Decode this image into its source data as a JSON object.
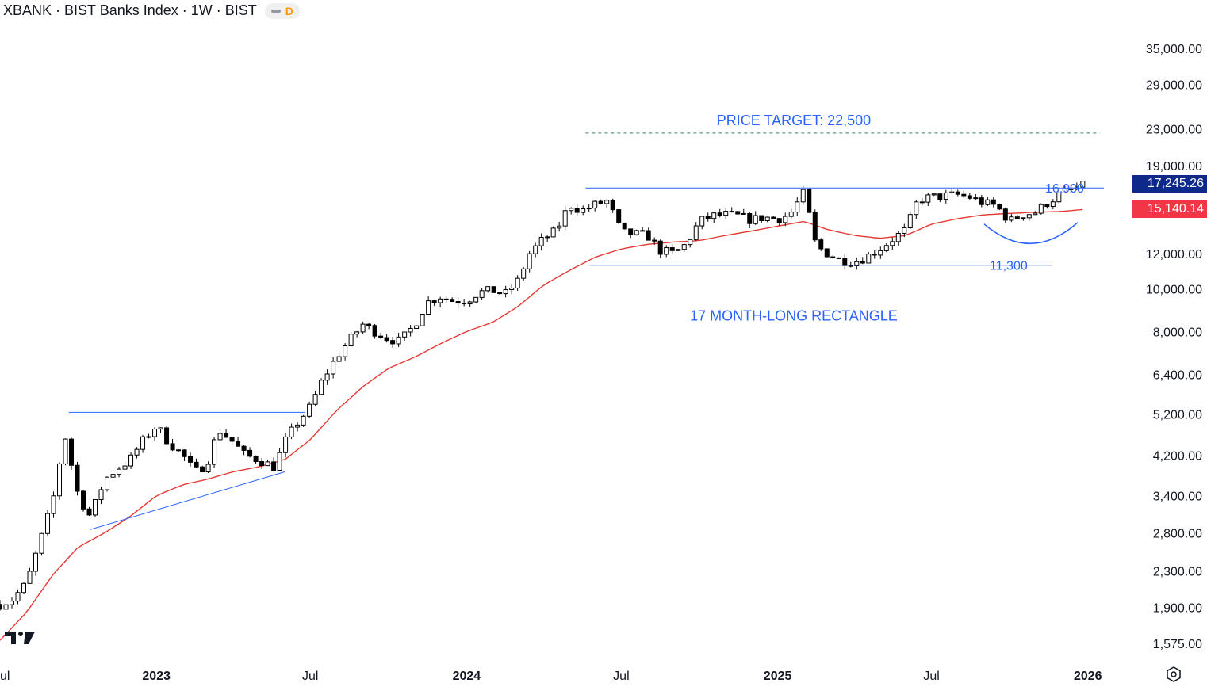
{
  "header": {
    "title": "XBANK · BIST Banks Index · 1W · BIST",
    "badge": "D"
  },
  "colors": {
    "candle_up_fill": "#ffffff",
    "candle_down_fill": "#000000",
    "candle_outline": "#000000",
    "moving_average": "#e53935",
    "annotation": "#2962ff",
    "last_price_bg": "#0d2a8a",
    "ma_price_bg": "#f23645"
  },
  "icons": {
    "logo": "tradingview-logo-icon",
    "settings": "settings-gear-icon"
  },
  "price_tags": {
    "last": "17,245.26",
    "ma": "15,140.14"
  },
  "chart_data": {
    "type": "candlestick",
    "scale": "log",
    "ylim": [
      1450,
      45000
    ],
    "xlim": [
      "2022-07-01",
      "2026-02-15"
    ],
    "y_ticks": [
      {
        "v": 35000,
        "label": "35,000.00"
      },
      {
        "v": 29000,
        "label": "29,000.00"
      },
      {
        "v": 23000,
        "label": "23,000.00"
      },
      {
        "v": 19000,
        "label": "19,000.00"
      },
      {
        "v": 12000,
        "label": "12,000.00"
      },
      {
        "v": 10000,
        "label": "10,000.00"
      },
      {
        "v": 8000,
        "label": "8,000.00"
      },
      {
        "v": 6400,
        "label": "6,400.00"
      },
      {
        "v": 5200,
        "label": "5,200.00"
      },
      {
        "v": 4200,
        "label": "4,200.00"
      },
      {
        "v": 3400,
        "label": "3,400.00"
      },
      {
        "v": 2800,
        "label": "2,800.00"
      },
      {
        "v": 2300,
        "label": "2,300.00"
      },
      {
        "v": 1900,
        "label": "1,900.00"
      },
      {
        "v": 1575,
        "label": "1,575.00"
      }
    ],
    "x_ticks": [
      {
        "date": "2022-07-01",
        "label": "Jul",
        "bold": false
      },
      {
        "date": "2023-01-01",
        "label": "2023",
        "bold": true
      },
      {
        "date": "2023-07-01",
        "label": "Jul",
        "bold": false
      },
      {
        "date": "2024-01-01",
        "label": "2024",
        "bold": true
      },
      {
        "date": "2024-07-01",
        "label": "Jul",
        "bold": false
      },
      {
        "date": "2025-01-01",
        "label": "2025",
        "bold": true
      },
      {
        "date": "2025-07-01",
        "label": "Jul",
        "bold": false
      },
      {
        "date": "2026-01-01",
        "label": "2026",
        "bold": true
      }
    ],
    "anchors": [
      [
        "2022-07-01",
        1930
      ],
      [
        "2022-07-15",
        1980
      ],
      [
        "2022-08-01",
        2150
      ],
      [
        "2022-08-15",
        2600
      ],
      [
        "2022-09-01",
        3300
      ],
      [
        "2022-09-15",
        4700
      ],
      [
        "2022-10-01",
        3400
      ],
      [
        "2022-10-15",
        3050
      ],
      [
        "2022-11-01",
        3700
      ],
      [
        "2022-11-15",
        3900
      ],
      [
        "2022-12-01",
        4100
      ],
      [
        "2022-12-15",
        4500
      ],
      [
        "2023-01-01",
        4900
      ],
      [
        "2023-01-15",
        4500
      ],
      [
        "2023-02-01",
        4200
      ],
      [
        "2023-02-15",
        3850
      ],
      [
        "2023-03-01",
        4000
      ],
      [
        "2023-03-15",
        4800
      ],
      [
        "2023-04-01",
        4500
      ],
      [
        "2023-04-15",
        4200
      ],
      [
        "2023-05-01",
        4100
      ],
      [
        "2023-05-20",
        3950
      ],
      [
        "2023-06-01",
        4500
      ],
      [
        "2023-06-15",
        4950
      ],
      [
        "2023-07-01",
        5400
      ],
      [
        "2023-07-15",
        6200
      ],
      [
        "2023-08-01",
        7000
      ],
      [
        "2023-08-15",
        7600
      ],
      [
        "2023-09-01",
        8300
      ],
      [
        "2023-09-15",
        8000
      ],
      [
        "2023-10-01",
        7700
      ],
      [
        "2023-10-15",
        7600
      ],
      [
        "2023-11-01",
        8300
      ],
      [
        "2023-11-15",
        9300
      ],
      [
        "2023-12-01",
        9600
      ],
      [
        "2023-12-15",
        9400
      ],
      [
        "2024-01-01",
        9400
      ],
      [
        "2024-01-15",
        9800
      ],
      [
        "2024-02-01",
        9900
      ],
      [
        "2024-02-15",
        9700
      ],
      [
        "2024-03-01",
        10400
      ],
      [
        "2024-03-15",
        12000
      ],
      [
        "2024-04-01",
        13000
      ],
      [
        "2024-04-15",
        13500
      ],
      [
        "2024-05-01",
        15500
      ],
      [
        "2024-05-15",
        15000
      ],
      [
        "2024-06-01",
        15500
      ],
      [
        "2024-06-15",
        15800
      ],
      [
        "2024-07-01",
        13400
      ],
      [
        "2024-07-15",
        13300
      ],
      [
        "2024-08-01",
        13200
      ],
      [
        "2024-08-15",
        12200
      ],
      [
        "2024-09-01",
        12000
      ],
      [
        "2024-09-15",
        12600
      ],
      [
        "2024-10-01",
        14200
      ],
      [
        "2024-10-15",
        14600
      ],
      [
        "2024-11-01",
        14700
      ],
      [
        "2024-11-15",
        14600
      ],
      [
        "2024-12-01",
        14300
      ],
      [
        "2024-12-15",
        14500
      ],
      [
        "2025-01-01",
        14400
      ],
      [
        "2025-01-15",
        14700
      ],
      [
        "2025-02-01",
        16500
      ],
      [
        "2025-02-15",
        12500
      ],
      [
        "2025-03-01",
        12000
      ],
      [
        "2025-03-15",
        11600
      ],
      [
        "2025-04-01",
        11500
      ],
      [
        "2025-04-15",
        11800
      ],
      [
        "2025-05-01",
        12300
      ],
      [
        "2025-05-15",
        12900
      ],
      [
        "2025-06-01",
        13600
      ],
      [
        "2025-06-15",
        15900
      ],
      [
        "2025-07-01",
        16100
      ],
      [
        "2025-07-15",
        16200
      ],
      [
        "2025-08-01",
        16300
      ],
      [
        "2025-08-15",
        16100
      ],
      [
        "2025-09-01",
        15600
      ],
      [
        "2025-09-15",
        15400
      ],
      [
        "2025-10-01",
        14200
      ],
      [
        "2025-10-15",
        14700
      ],
      [
        "2025-11-01",
        14900
      ],
      [
        "2025-11-15",
        15700
      ],
      [
        "2025-12-01",
        16400
      ],
      [
        "2025-12-15",
        16800
      ],
      [
        "2026-01-01",
        17245
      ]
    ],
    "moving_average": [
      [
        "2022-07-01",
        1600
      ],
      [
        "2022-08-01",
        1850
      ],
      [
        "2022-09-01",
        2250
      ],
      [
        "2022-10-01",
        2600
      ],
      [
        "2022-11-01",
        2800
      ],
      [
        "2022-12-01",
        3050
      ],
      [
        "2023-01-01",
        3400
      ],
      [
        "2023-02-01",
        3600
      ],
      [
        "2023-03-01",
        3700
      ],
      [
        "2023-04-01",
        3850
      ],
      [
        "2023-05-01",
        3950
      ],
      [
        "2023-06-01",
        4100
      ],
      [
        "2023-07-01",
        4550
      ],
      [
        "2023-08-01",
        5300
      ],
      [
        "2023-09-01",
        6000
      ],
      [
        "2023-10-01",
        6600
      ],
      [
        "2023-11-01",
        7000
      ],
      [
        "2023-12-01",
        7500
      ],
      [
        "2024-01-01",
        8000
      ],
      [
        "2024-02-01",
        8400
      ],
      [
        "2024-03-01",
        9100
      ],
      [
        "2024-04-01",
        10200
      ],
      [
        "2024-05-01",
        11000
      ],
      [
        "2024-06-01",
        11800
      ],
      [
        "2024-07-01",
        12300
      ],
      [
        "2024-08-01",
        12600
      ],
      [
        "2024-09-01",
        12750
      ],
      [
        "2024-10-01",
        12850
      ],
      [
        "2024-11-01",
        13200
      ],
      [
        "2024-12-01",
        13500
      ],
      [
        "2025-01-01",
        13850
      ],
      [
        "2025-02-01",
        14200
      ],
      [
        "2025-03-01",
        13600
      ],
      [
        "2025-04-01",
        13200
      ],
      [
        "2025-05-01",
        13000
      ],
      [
        "2025-06-01",
        13200
      ],
      [
        "2025-07-01",
        14000
      ],
      [
        "2025-08-01",
        14400
      ],
      [
        "2025-09-01",
        14700
      ],
      [
        "2025-10-01",
        14800
      ],
      [
        "2025-11-01",
        14900
      ],
      [
        "2025-12-01",
        14950
      ],
      [
        "2026-01-01",
        15140
      ]
    ],
    "annotations": {
      "price_target_label": "PRICE TARGET: 22,500",
      "price_target_value": 22500,
      "resistance_label": "16,900",
      "resistance_value": 16900,
      "support_label": "11,300",
      "support_value": 11300,
      "pattern_label": "17 MONTH-LONG RECTANGLE",
      "triangle_top_value": 5250,
      "triangle_bottom_start": [
        "2022-10-15",
        2850
      ],
      "triangle_bottom_end": [
        "2023-06-01",
        3850
      ]
    },
    "last_price": 17245.26,
    "ma_value": 15140.14
  }
}
